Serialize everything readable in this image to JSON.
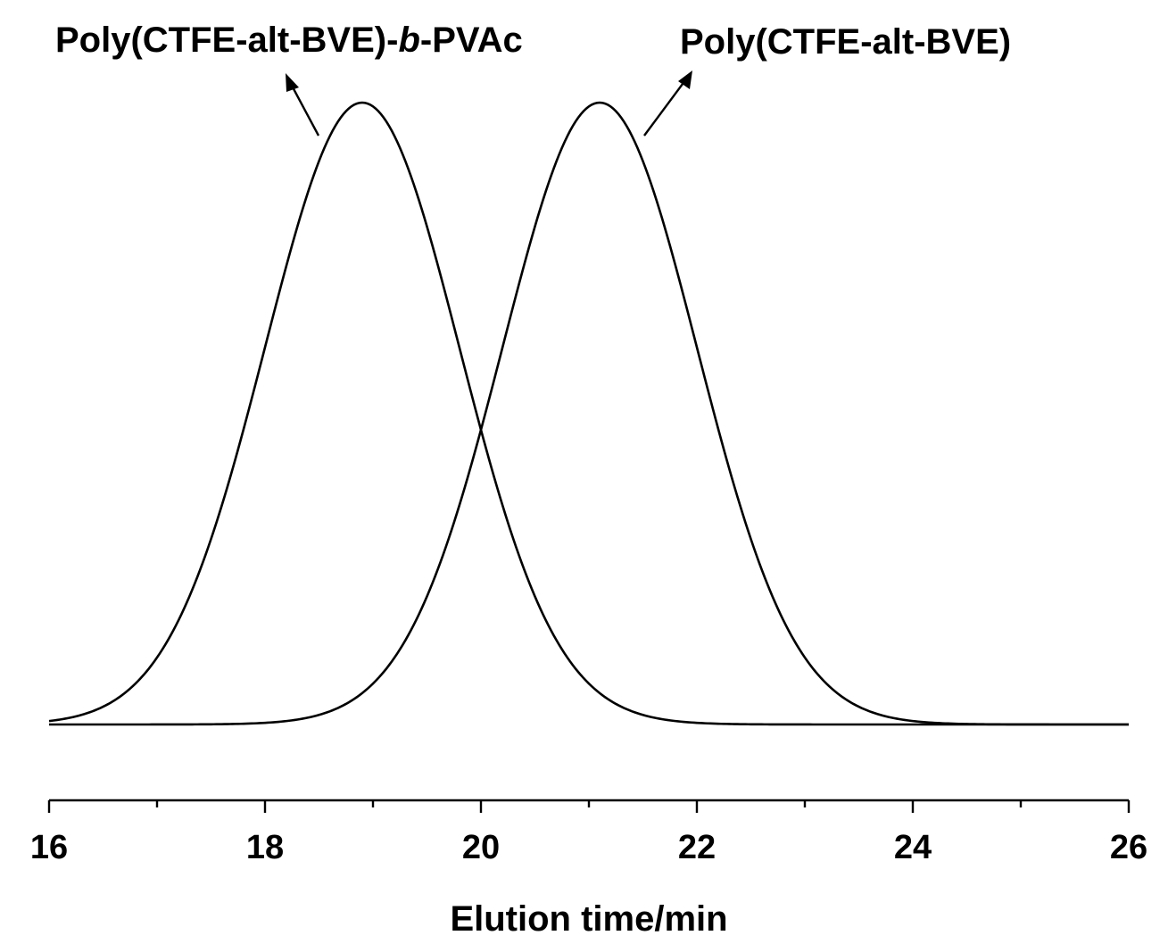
{
  "chart_data": {
    "type": "line",
    "title": "",
    "xlabel": "Elution time/min",
    "ylabel": "",
    "xlim": [
      16,
      26
    ],
    "ylim": [
      0,
      1
    ],
    "grid": false,
    "xticks": [
      "16",
      "18",
      "20",
      "22",
      "24",
      "26"
    ],
    "x_minor_step": 1,
    "series": [
      {
        "name": "Poly(CTFE-alt-BVE)-b-PVAc",
        "label_parts": [
          "Poly(CTFE-alt-BVE)-",
          "b",
          "-PVAc"
        ],
        "peak": 18.9,
        "sigma": 0.9,
        "amplitude": 1.0
      },
      {
        "name": "Poly(CTFE-alt-BVE)",
        "peak": 21.1,
        "sigma": 0.9,
        "amplitude": 1.0
      }
    ],
    "colors": {
      "line": "#000000",
      "background": "#ffffff"
    }
  }
}
